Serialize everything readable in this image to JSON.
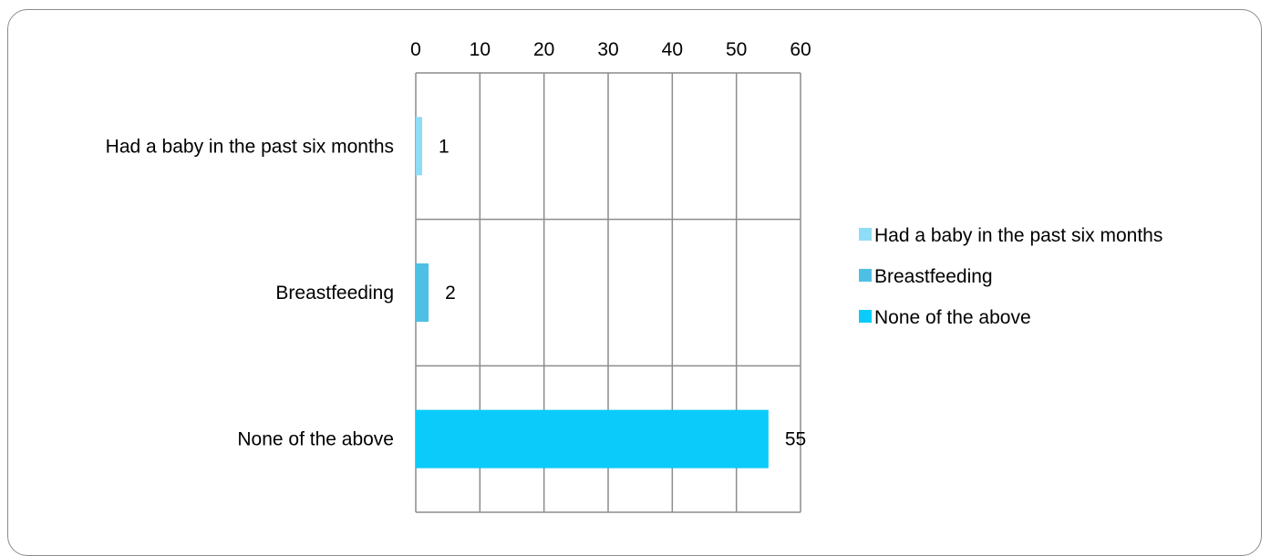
{
  "chart_data": {
    "type": "bar",
    "orientation": "horizontal",
    "categories": [
      "Had a baby in the past six months",
      "Breastfeeding",
      "None of the above"
    ],
    "values": [
      1,
      2,
      55
    ],
    "data_labels": [
      "1",
      "2",
      "55"
    ],
    "xlim": [
      0,
      60
    ],
    "xticks": [
      0,
      10,
      20,
      30,
      40,
      50,
      60
    ],
    "x_axis_position": "top",
    "grid": true,
    "legend": {
      "placement": "right",
      "entries": [
        "Had a baby in the past six months",
        "Breastfeeding",
        "None of the above"
      ]
    },
    "colors": [
      "#8fdcf6",
      "#4ec0e4",
      "#0bcbfb"
    ]
  }
}
